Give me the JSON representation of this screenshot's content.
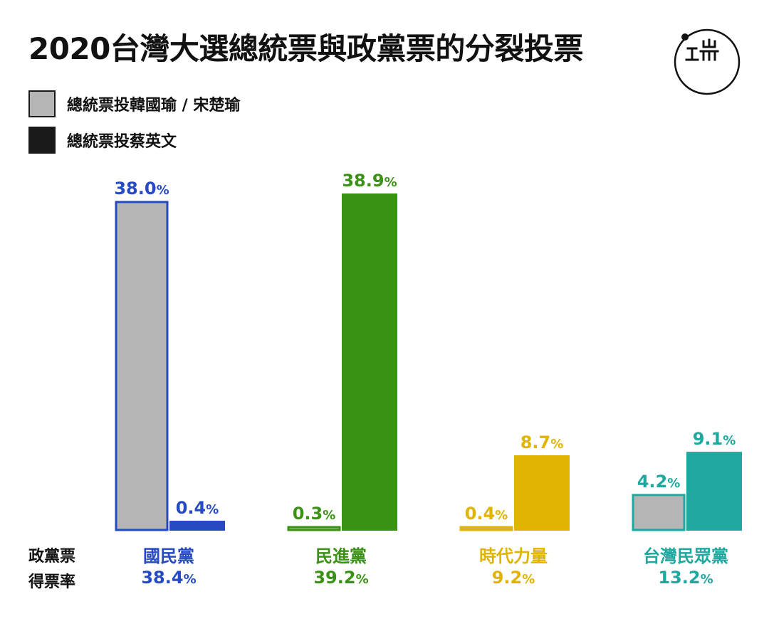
{
  "title": "2020台灣大選總統票與政黨票的分裂投票",
  "legend": [
    {
      "label": "總統票投韓國瑜 / 宋楚瑜",
      "color": "#b5b5b5"
    },
    {
      "label": "總統票投蔡英文",
      "color": "#1a1a1a"
    }
  ],
  "row_labels": {
    "party_vote": "政黨票",
    "vote_rate": "得票率"
  },
  "logo_icon": "initium-logo-icon",
  "chart_data": {
    "type": "bar",
    "categories": [
      "國民黨",
      "民進黨",
      "時代力量",
      "台灣民眾黨"
    ],
    "party_colors": [
      "#2649c4",
      "#3a9214",
      "#e0b400",
      "#1ea8a0"
    ],
    "series": [
      {
        "name": "總統票投韓國瑜 / 宋楚瑜",
        "values": [
          38.0,
          0.3,
          0.4,
          4.2
        ]
      },
      {
        "name": "總統票投蔡英文",
        "values": [
          0.4,
          38.9,
          8.7,
          9.1
        ]
      }
    ],
    "party_vote_rates": [
      38.4,
      39.2,
      9.2,
      13.2
    ],
    "unit": "%",
    "ylim": [
      0,
      40
    ]
  }
}
